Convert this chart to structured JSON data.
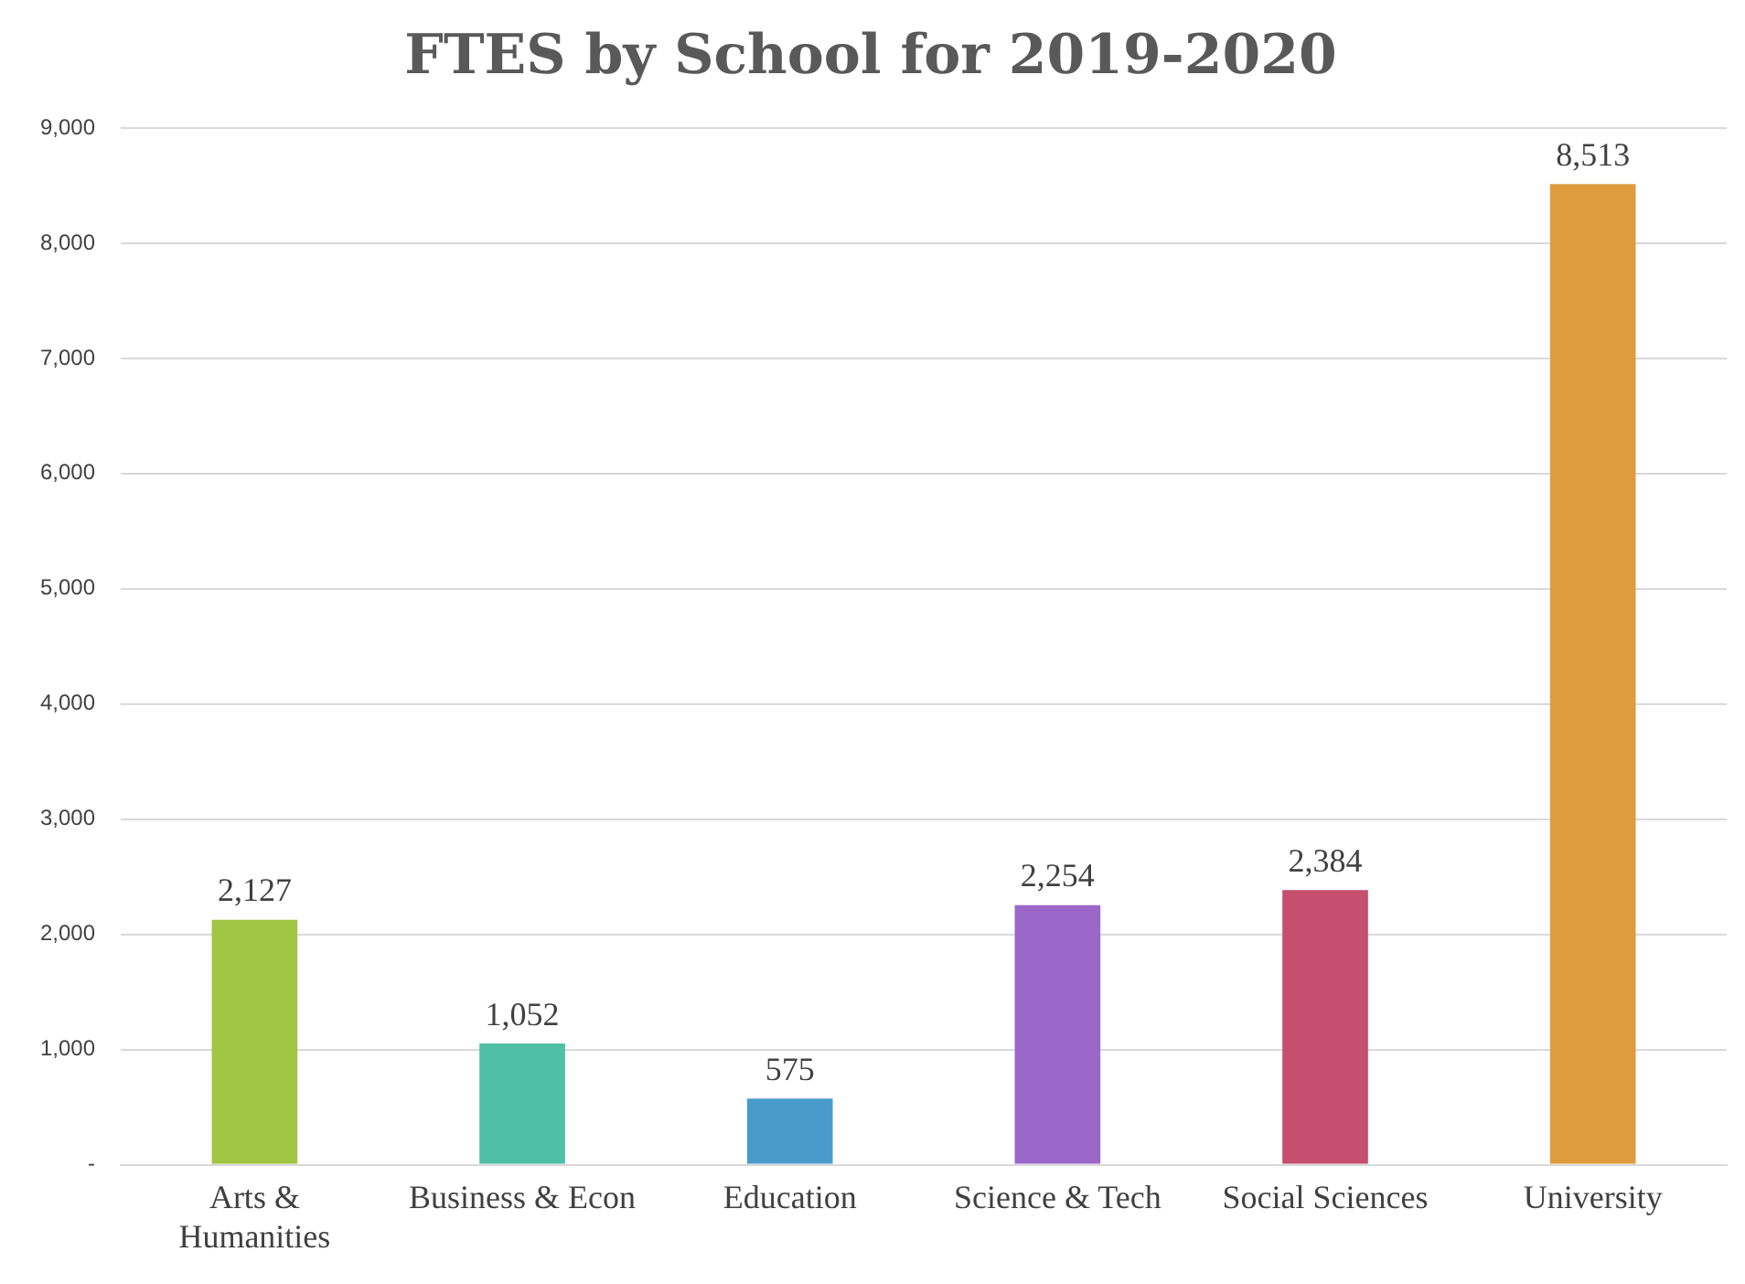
{
  "chart_data": {
    "type": "bar",
    "title": "FTES by School for 2019-2020",
    "categories": [
      "Arts & Humanities",
      "Business & Econ",
      "Education",
      "Science & Tech",
      "Social Sciences",
      "University"
    ],
    "values": [
      2127,
      1052,
      575,
      2254,
      2384,
      8513
    ],
    "colors": [
      "#9fc543",
      "#4fbfa5",
      "#4a9bcc",
      "#9b67c9",
      "#c64e6e",
      "#de9c3e"
    ],
    "ylim": [
      0,
      9000
    ],
    "yticks": [
      {
        "value": 0,
        "label": "-"
      },
      {
        "value": 1000,
        "label": "1,000"
      },
      {
        "value": 2000,
        "label": "2,000"
      },
      {
        "value": 3000,
        "label": "3,000"
      },
      {
        "value": 4000,
        "label": "4,000"
      },
      {
        "value": 5000,
        "label": "5,000"
      },
      {
        "value": 6000,
        "label": "6,000"
      },
      {
        "value": 7000,
        "label": "7,000"
      },
      {
        "value": 8000,
        "label": "8,000"
      },
      {
        "value": 9000,
        "label": "9,000"
      }
    ],
    "value_labels": [
      "2,127",
      "1,052",
      "575",
      "2,254",
      "2,384",
      "8,513"
    ],
    "grid": "y"
  }
}
